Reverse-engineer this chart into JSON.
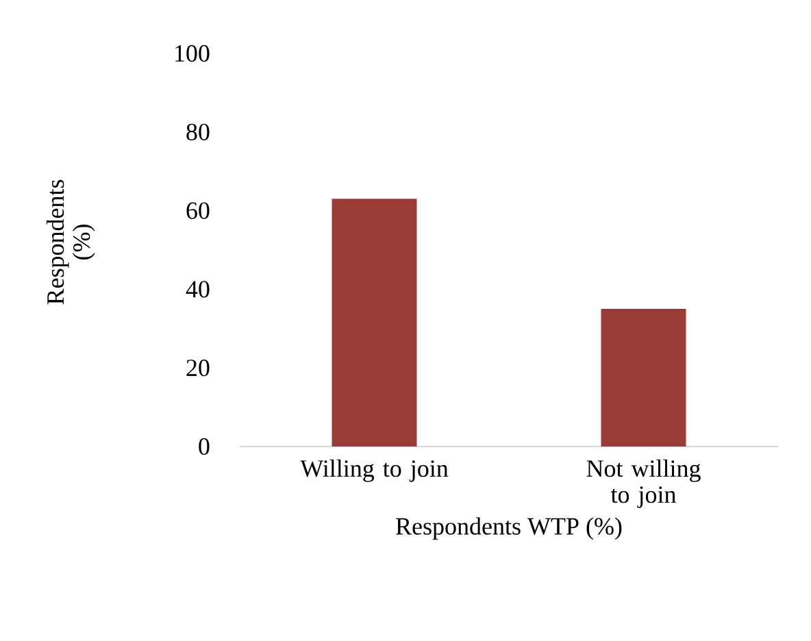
{
  "chart_data": {
    "type": "bar",
    "xlabel": "Respondents WTP (%)",
    "ylabel": "Respondents (%)",
    "categories": [
      "Willing to join",
      "Not willing to join"
    ],
    "values": [
      63,
      35
    ],
    "color": "#9b3b36",
    "ylim": [
      0,
      100
    ],
    "yticks": [
      0,
      20,
      40,
      60,
      80,
      100
    ],
    "grid": false
  }
}
